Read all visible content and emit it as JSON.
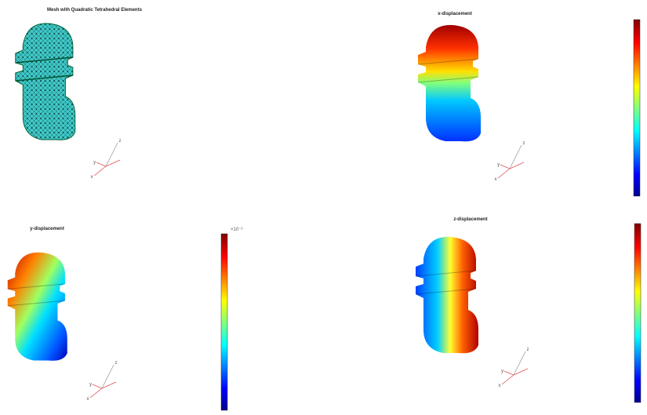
{
  "panels": [
    {
      "title": "Mesh with Quadratic Tetrahedral Elements",
      "axes": [
        "x",
        "y",
        "z"
      ]
    },
    {
      "title": "x-displacement",
      "axes": [
        "x",
        "y",
        "z"
      ]
    },
    {
      "title": "y-displacement",
      "axes": [
        "x",
        "y",
        "z"
      ],
      "colorbar_label": "×10⁻³"
    },
    {
      "title": "z-displacement",
      "axes": [
        "x",
        "y",
        "z"
      ]
    }
  ]
}
